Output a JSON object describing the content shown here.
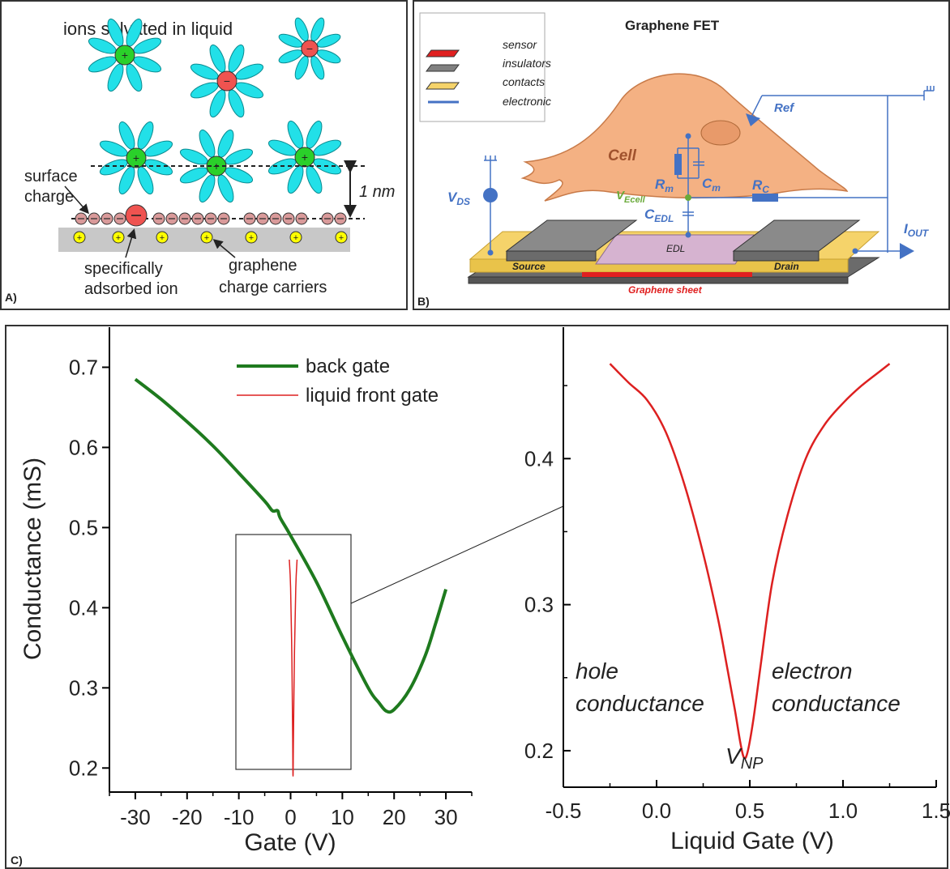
{
  "panel_a": {
    "label": "A)",
    "ions_text": "ions solvated in liquid",
    "surface_charge": [
      "surface",
      "charge"
    ],
    "distance": "1 nm",
    "adsorbed_ion": [
      "specifically",
      "adsorbed ion"
    ],
    "carriers": [
      "graphene",
      "charge carriers"
    ],
    "plus": "+",
    "minus": "−",
    "colors": {
      "water": "#22e0e8",
      "cation": "#2ad02a",
      "anion": "#ef5350",
      "surface_ion": "#d99a9a",
      "carrier": "#ffff00",
      "substrate": "#c8c8c8"
    }
  },
  "panel_b": {
    "label": "B)",
    "title": "Graphene FET",
    "legend": [
      "sensor",
      "insulators",
      "contacts",
      "electronic"
    ],
    "cell": "Cell",
    "ref": "Ref",
    "vds_main": "V",
    "vds_sub": "DS",
    "vecell_main": "V",
    "vecell_sub": "Ecell",
    "rm_main": "R",
    "rm_sub": "m",
    "cm_main": "C",
    "cm_sub": "m",
    "cedl_main": "C",
    "cedl_sub": "EDL",
    "rc_main": "R",
    "rc_sub": "C",
    "iout_main": "I",
    "iout_sub": "OUT",
    "edl": "EDL",
    "source": "Source",
    "drain": "Drain",
    "graphene_sheet": "Graphene sheet",
    "colors": {
      "sensor": "#e02020",
      "insulator": "#808080",
      "contact": "#f5d36a",
      "electronic": "#4472c4",
      "cell": "#f4b183",
      "cell_label": "#a0522d",
      "vecell": "#6aaa3a"
    }
  },
  "panel_c": {
    "label": "C)",
    "left_chart": {
      "xlabel": "Gate (V)",
      "ylabel": "Conductance (mS)",
      "xticks": [
        "-30",
        "-20",
        "-10",
        "0",
        "10",
        "20",
        "30"
      ],
      "yticks": [
        "0.2",
        "0.3",
        "0.4",
        "0.5",
        "0.6",
        "0.7"
      ],
      "legend": [
        "back gate",
        "liquid front gate"
      ]
    },
    "right_chart": {
      "xlabel": "Liquid Gate (V)",
      "xticks": [
        "-0.5",
        "0.0",
        "0.5",
        "1.0",
        "1.5"
      ],
      "yticks": [
        "0.2",
        "0.3",
        "0.4"
      ],
      "hole": [
        "hole",
        "conductance"
      ],
      "electron": [
        "electron",
        "conductance"
      ],
      "vnp_main": "V",
      "vnp_sub": "NP"
    },
    "colors": {
      "back_gate": "#1e7a1e",
      "front_gate": "#dd2020"
    }
  },
  "chart_data": [
    {
      "type": "line",
      "title": "",
      "xlabel": "Gate (V)",
      "ylabel": "Conductance (mS)",
      "xlim": [
        -35,
        35
      ],
      "ylim": [
        0.17,
        0.75
      ],
      "legend_position": "top-right",
      "series": [
        {
          "name": "back gate",
          "x": [
            -30,
            -25,
            -20,
            -15,
            -10,
            -5,
            -3.5,
            -2.5,
            -2,
            0,
            5,
            10,
            15,
            17,
            18.5,
            20,
            23,
            26,
            28,
            30
          ],
          "y": [
            0.685,
            0.66,
            0.632,
            0.602,
            0.568,
            0.533,
            0.521,
            0.521,
            0.512,
            0.49,
            0.432,
            0.364,
            0.3,
            0.282,
            0.271,
            0.273,
            0.298,
            0.34,
            0.38,
            0.423
          ]
        },
        {
          "name": "liquid front gate",
          "x": [
            -0.25,
            0.0,
            0.25,
            0.4,
            0.47,
            0.55,
            0.75,
            1.0,
            1.25
          ],
          "y": [
            0.465,
            0.43,
            0.34,
            0.24,
            0.195,
            0.24,
            0.35,
            0.43,
            0.465
          ]
        }
      ]
    },
    {
      "type": "line",
      "title": "",
      "xlabel": "Liquid Gate (V)",
      "ylabel": "",
      "xlim": [
        -0.5,
        1.5
      ],
      "ylim": [
        0.175,
        0.49
      ],
      "series": [
        {
          "name": "liquid front gate",
          "x": [
            -0.25,
            -0.15,
            -0.05,
            0.05,
            0.15,
            0.25,
            0.33,
            0.38,
            0.42,
            0.45,
            0.47,
            0.49,
            0.52,
            0.56,
            0.62,
            0.7,
            0.8,
            0.9,
            1.0,
            1.1,
            1.2,
            1.25
          ],
          "y": [
            0.465,
            0.452,
            0.44,
            0.418,
            0.382,
            0.335,
            0.29,
            0.256,
            0.228,
            0.205,
            0.195,
            0.2,
            0.222,
            0.26,
            0.315,
            0.36,
            0.4,
            0.423,
            0.438,
            0.45,
            0.46,
            0.465
          ]
        }
      ]
    }
  ]
}
